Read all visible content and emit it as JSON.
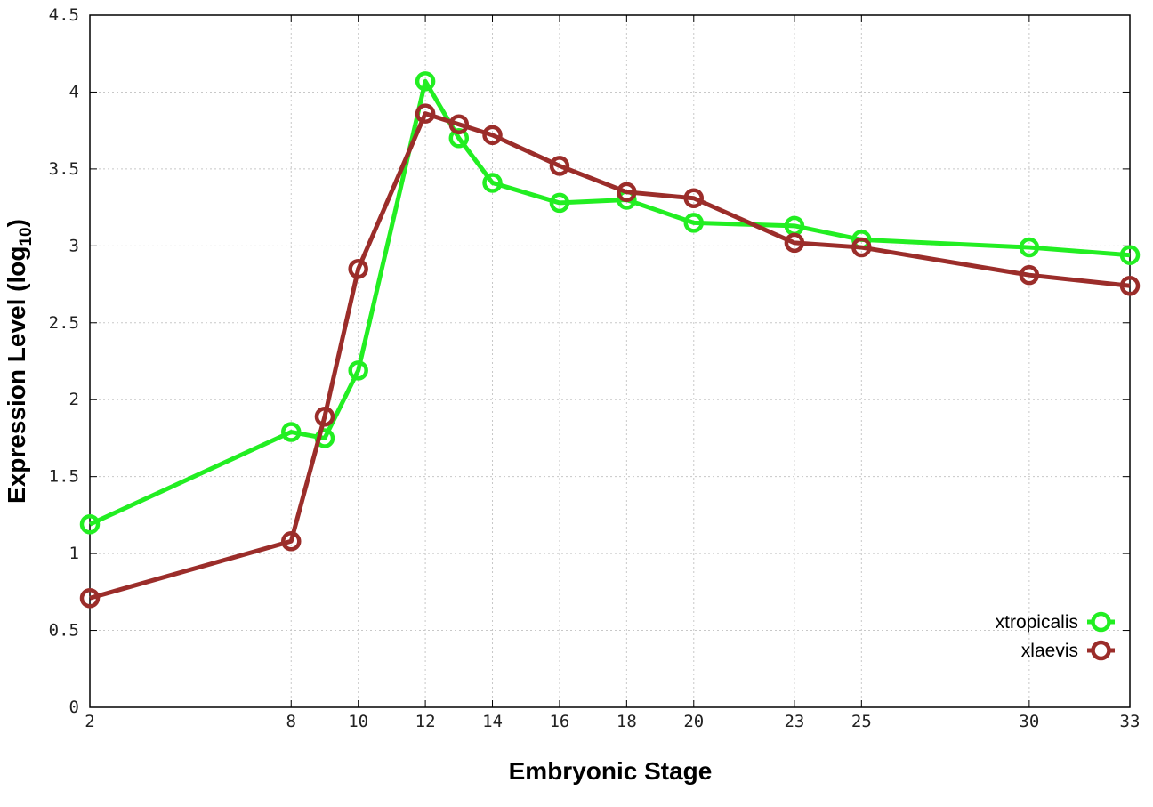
{
  "chart_data": {
    "type": "line",
    "title": "",
    "xlabel": "Embryonic Stage",
    "ylabel_main": "Expression Level (log",
    "ylabel_sub": "10",
    "ylabel_close": ")",
    "x": [
      2,
      8,
      9,
      10,
      12,
      13,
      14,
      16,
      18,
      20,
      23,
      25,
      30,
      33
    ],
    "x_ticks": [
      2,
      8,
      10,
      12,
      14,
      16,
      18,
      20,
      23,
      25,
      30,
      33
    ],
    "x_tick_labels": [
      "2",
      "8",
      "10",
      "12",
      "14",
      "16",
      "18",
      "20",
      "23",
      "25",
      "30",
      "33"
    ],
    "xlim": [
      2,
      33
    ],
    "ylim": [
      0,
      4.5
    ],
    "y_ticks": [
      0,
      0.5,
      1,
      1.5,
      2,
      2.5,
      3,
      3.5,
      4,
      4.5
    ],
    "y_tick_labels": [
      "0",
      "0.5",
      "1",
      "1.5",
      "2",
      "2.5",
      "3",
      "3.5",
      "4",
      "4.5"
    ],
    "grid": true,
    "legend_position": "bottom-right",
    "series": [
      {
        "name": "xtropicalis",
        "color": "#22ee22",
        "values": [
          1.19,
          1.79,
          1.75,
          2.19,
          4.07,
          3.7,
          3.41,
          3.28,
          3.3,
          3.15,
          3.13,
          3.04,
          2.99,
          2.94
        ]
      },
      {
        "name": "xlaevis",
        "color": "#9b2d2a",
        "values": [
          0.71,
          1.08,
          1.89,
          2.85,
          3.86,
          3.79,
          3.72,
          3.52,
          3.35,
          3.31,
          3.02,
          2.99,
          2.81,
          2.74
        ]
      }
    ]
  }
}
